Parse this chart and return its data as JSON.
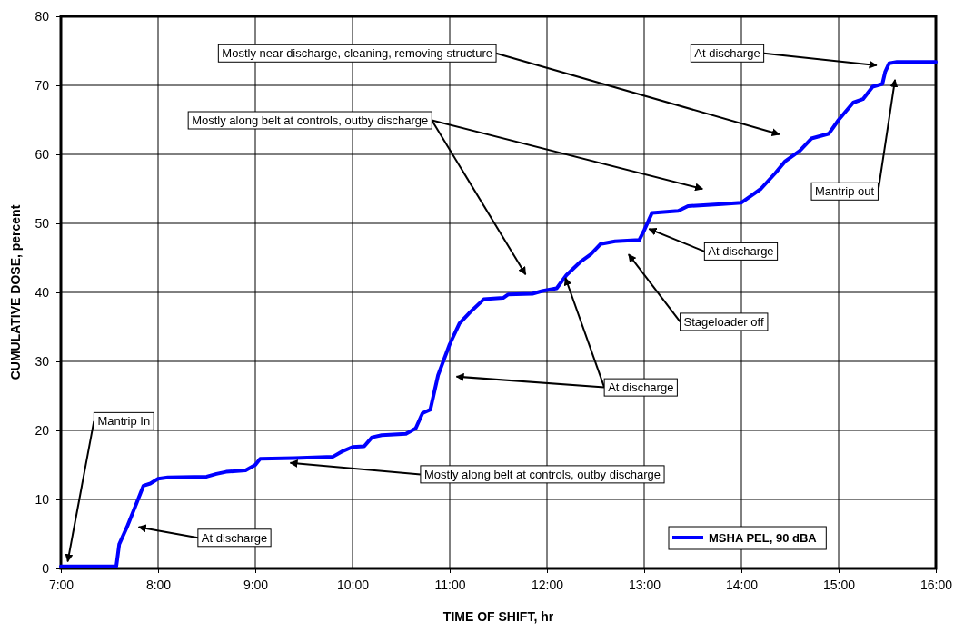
{
  "chart_data": {
    "type": "line",
    "xlabel": "TIME OF SHIFT, hr",
    "ylabel": "CUMULATIVE DOSE, percent",
    "xlim": [
      7,
      16
    ],
    "ylim": [
      0,
      80
    ],
    "xticks": [
      {
        "value": 7,
        "label": "7:00"
      },
      {
        "value": 8,
        "label": "8:00"
      },
      {
        "value": 9,
        "label": "9:00"
      },
      {
        "value": 10,
        "label": "10:00"
      },
      {
        "value": 11,
        "label": "11:00"
      },
      {
        "value": 12,
        "label": "12:00"
      },
      {
        "value": 13,
        "label": "13:00"
      },
      {
        "value": 14,
        "label": "14:00"
      },
      {
        "value": 15,
        "label": "15:00"
      },
      {
        "value": 16,
        "label": "16:00"
      }
    ],
    "yticks": [
      0,
      10,
      20,
      30,
      40,
      50,
      60,
      70,
      80
    ],
    "grid": true,
    "legend": "bottom right",
    "marker": "none",
    "line_style": "solid",
    "x": [
      7,
      7.57,
      7.6,
      7.68,
      7.78,
      7.85,
      7.92,
      8.0,
      8.1,
      8.5,
      8.6,
      8.7,
      8.9,
      9.0,
      9.05,
      9.4,
      9.8,
      9.9,
      10.0,
      10.12,
      10.2,
      10.3,
      10.55,
      10.65,
      10.72,
      10.8,
      10.88,
      11.0,
      11.1,
      11.2,
      11.35,
      11.55,
      11.6,
      11.85,
      11.95,
      12.1,
      12.2,
      12.35,
      12.45,
      12.55,
      12.7,
      12.95,
      13.0,
      13.08,
      13.35,
      13.45,
      13.8,
      14.0,
      14.1,
      14.2,
      14.35,
      14.45,
      14.6,
      14.72,
      14.9,
      15.0,
      15.15,
      15.25,
      15.35,
      15.45,
      15.48,
      15.52,
      15.6,
      16
    ],
    "series": [
      {
        "name": "MSHA PEL, 90 dBA",
        "color": "#0000ff",
        "values": [
          0.3,
          0.3,
          3.5,
          6,
          9.5,
          12,
          12.3,
          13,
          13.2,
          13.3,
          13.7,
          14,
          14.2,
          15,
          15.9,
          16,
          16.2,
          17,
          17.6,
          17.7,
          19,
          19.3,
          19.5,
          20.3,
          22.5,
          23,
          28,
          32.5,
          35.5,
          37,
          39,
          39.2,
          39.7,
          39.8,
          40.2,
          40.6,
          42.5,
          44.5,
          45.5,
          47,
          47.4,
          47.6,
          49,
          51.5,
          51.8,
          52.5,
          52.8,
          53,
          54,
          55,
          57.3,
          59,
          60.5,
          62.3,
          63,
          65,
          67.5,
          68,
          69.8,
          70.2,
          72,
          73.2,
          73.4,
          73.4
        ]
      }
    ],
    "annotations": [
      {
        "text": "Mantrip In",
        "x": 7.07,
        "y": 1
      },
      "At discharge",
      {
        "text": "Mostly along belt at controls, outby discharge",
        "x": 9.36,
        "y": 15.3
      },
      "Mostly along belt at controls, outby discharge",
      {
        "text": "At discharge",
        "x": 12.19,
        "y": 42.1
      },
      "Stageloader off",
      {
        "text": "At discharge",
        "x": 13.05,
        "y": 49.2
      },
      "Mostly near discharge, cleaning, removing structure",
      "At discharge",
      "Mantrip out"
    ]
  }
}
